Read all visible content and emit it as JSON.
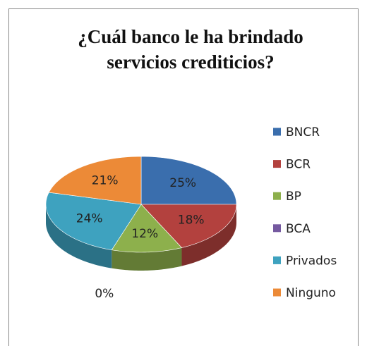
{
  "chart_data": {
    "type": "pie3d",
    "title": "¿Cuál banco le ha brindado servicios crediticios?",
    "categories": [
      "BNCR",
      "BCR",
      "BP",
      "BCA",
      "Privados",
      "Ninguno"
    ],
    "values": [
      25,
      18,
      12,
      0,
      24,
      21
    ],
    "value_labels": [
      "25%",
      "18%",
      "12%",
      "0%",
      "24%",
      "21%"
    ],
    "colors": [
      "#3a6ead",
      "#b3413e",
      "#8db04c",
      "#7559a0",
      "#3ea2bf",
      "#ec8a37"
    ],
    "legend": "right"
  }
}
